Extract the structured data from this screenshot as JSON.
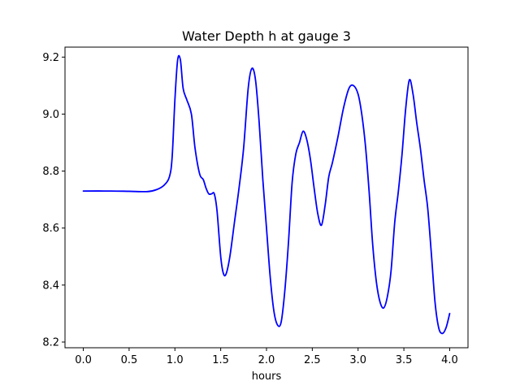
{
  "chart_data": {
    "type": "line",
    "title": "Water Depth h at gauge 3",
    "xlabel": "hours",
    "ylabel": "",
    "xlim": [
      -0.2,
      4.2
    ],
    "ylim": [
      8.18,
      9.235
    ],
    "xticks": [
      0.0,
      0.5,
      1.0,
      1.5,
      2.0,
      2.5,
      3.0,
      3.5,
      4.0
    ],
    "xtick_labels": [
      "0.0",
      "0.5",
      "1.0",
      "1.5",
      "2.0",
      "2.5",
      "3.0",
      "3.5",
      "4.0"
    ],
    "yticks": [
      8.2,
      8.4,
      8.6,
      8.8,
      9.0,
      9.2
    ],
    "ytick_labels": [
      "8.2",
      "8.4",
      "8.6",
      "8.8",
      "9.0",
      "9.2"
    ],
    "grid": false,
    "series": [
      {
        "color": "#0000ff",
        "x": [
          0.0,
          0.3,
          0.5,
          0.7,
          0.8,
          0.88,
          0.94,
          0.97,
          1.0,
          1.03,
          1.06,
          1.09,
          1.13,
          1.18,
          1.22,
          1.27,
          1.31,
          1.34,
          1.37,
          1.4,
          1.43,
          1.46,
          1.5,
          1.53,
          1.56,
          1.6,
          1.65,
          1.7,
          1.75,
          1.8,
          1.84,
          1.88,
          1.92,
          1.96,
          2.0,
          2.04,
          2.08,
          2.12,
          2.16,
          2.2,
          2.24,
          2.28,
          2.32,
          2.36,
          2.4,
          2.44,
          2.48,
          2.52,
          2.56,
          2.6,
          2.64,
          2.68,
          2.72,
          2.78,
          2.84,
          2.9,
          2.95,
          3.0,
          3.04,
          3.08,
          3.12,
          3.16,
          3.2,
          3.24,
          3.28,
          3.32,
          3.36,
          3.4,
          3.44,
          3.48,
          3.52,
          3.56,
          3.6,
          3.64,
          3.68,
          3.72,
          3.76,
          3.8,
          3.84,
          3.88,
          3.92,
          3.96,
          4.0
        ],
        "y": [
          8.73,
          8.73,
          8.729,
          8.728,
          8.735,
          8.75,
          8.78,
          8.85,
          9.05,
          9.19,
          9.19,
          9.09,
          9.05,
          9.0,
          8.88,
          8.79,
          8.77,
          8.74,
          8.72,
          8.72,
          8.72,
          8.66,
          8.5,
          8.44,
          8.44,
          8.5,
          8.62,
          8.74,
          8.88,
          9.09,
          9.16,
          9.12,
          8.97,
          8.77,
          8.6,
          8.43,
          8.31,
          8.26,
          8.27,
          8.38,
          8.55,
          8.76,
          8.86,
          8.9,
          8.94,
          8.91,
          8.84,
          8.74,
          8.65,
          8.61,
          8.68,
          8.78,
          8.83,
          8.92,
          9.02,
          9.09,
          9.1,
          9.07,
          9.0,
          8.89,
          8.73,
          8.54,
          8.41,
          8.34,
          8.32,
          8.36,
          8.45,
          8.62,
          8.73,
          8.86,
          9.02,
          9.12,
          9.07,
          8.97,
          8.88,
          8.77,
          8.67,
          8.51,
          8.34,
          8.25,
          8.23,
          8.25,
          8.3
        ]
      }
    ]
  }
}
